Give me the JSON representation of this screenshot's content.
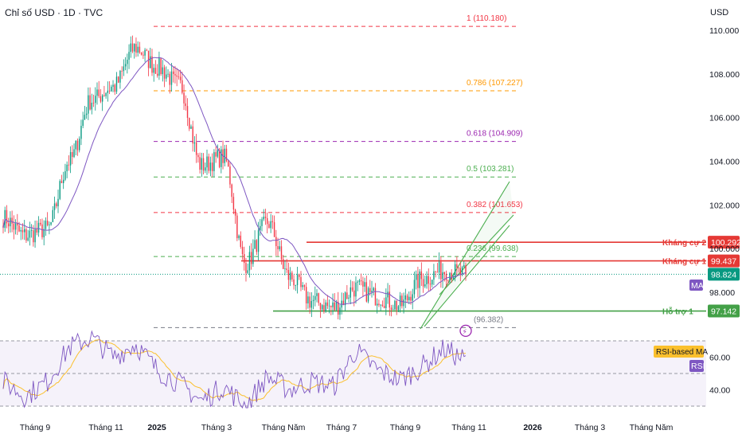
{
  "header": {
    "title": "Chỉ số USD · 1D · TVC",
    "currency": "USD"
  },
  "colors": {
    "up": "#089981",
    "down": "#f23645",
    "ma": "#7e57c2",
    "rsi": "#7e57c2",
    "rsi_ma": "#fbc02d",
    "resistance": "#e53935",
    "support": "#43a047",
    "channel": "#4caf50",
    "last_price": "#089981"
  },
  "chart_data": [
    {
      "type": "candlestick",
      "title": "Chỉ số USD · 1D · TVC",
      "ylim": [
        94.3,
        110.6
      ],
      "y_ticks": [
        "110.000",
        "108.000",
        "106.000",
        "104.000",
        "102.000",
        "100.000",
        "98.000"
      ],
      "x_ticks": [
        "Tháng 9",
        "Tháng 11",
        "2025",
        "Tháng 3",
        "Tháng Năm",
        "Tháng 7",
        "Tháng 9",
        "Tháng 11",
        "2026",
        "Tháng 3",
        "Tháng Năm"
      ],
      "anchors": [
        {
          "label": "Tháng 9",
          "close": 101.4
        },
        {
          "label": "",
          "close": 100.6
        },
        {
          "label": "",
          "close": 100.9
        },
        {
          "label": "Tháng 11",
          "close": 104.0
        },
        {
          "label": "",
          "close": 106.8
        },
        {
          "label": "",
          "close": 107.4
        },
        {
          "label": "2025",
          "close": 109.2
        },
        {
          "label": "",
          "close": 108.3
        },
        {
          "label": "",
          "close": 107.5
        },
        {
          "label": "Tháng 3",
          "close": 103.8
        },
        {
          "label": "",
          "close": 104.2
        },
        {
          "label": "",
          "close": 99.3
        },
        {
          "label": "Tháng Năm",
          "close": 101.2
        },
        {
          "label": "",
          "close": 98.7
        },
        {
          "label": "",
          "close": 97.6
        },
        {
          "label": "Tháng 7",
          "close": 97.3
        },
        {
          "label": "",
          "close": 98.2
        },
        {
          "label": "",
          "close": 97.8
        },
        {
          "label": "Tháng 9",
          "close": 97.4
        },
        {
          "label": "",
          "close": 98.6
        },
        {
          "label": "",
          "close": 99.0
        },
        {
          "label": "Tháng 11",
          "close": 98.82
        }
      ],
      "moving_average": {
        "name": "MA",
        "badge": "MA"
      },
      "fibonacci": [
        {
          "ratio": "1",
          "price": 110.18,
          "label": "1 (110.180)",
          "color": "#f23645"
        },
        {
          "ratio": "0.786",
          "price": 107.227,
          "label": "0.786 (107.227)",
          "color": "#ff9800"
        },
        {
          "ratio": "0.618",
          "price": 104.909,
          "label": "0.618 (104.909)",
          "color": "#9c27b0"
        },
        {
          "ratio": "0.5",
          "price": 103.281,
          "label": "0.5 (103.281)",
          "color": "#4caf50"
        },
        {
          "ratio": "0.382",
          "price": 101.653,
          "label": "0.382 (101.653)",
          "color": "#f23645"
        },
        {
          "ratio": "0.236",
          "price": 99.638,
          "label": "0.236 (99.638)",
          "color": "#4caf50"
        },
        {
          "ratio": "0",
          "price": 96.382,
          "label": "(96.382)",
          "color": "#787b86"
        }
      ],
      "levels": [
        {
          "name": "Kháng cự 2",
          "price": 100.292,
          "price_label": "100.292",
          "color": "#e53935"
        },
        {
          "name": "Kháng cự 1",
          "price": 99.437,
          "price_label": "99.437",
          "color": "#e53935"
        },
        {
          "name": "Hỗ trợ 1",
          "price": 97.142,
          "price_label": "97.142",
          "color": "#43a047"
        }
      ],
      "last_price": {
        "value": 98.824,
        "label": "98.824"
      }
    },
    {
      "type": "line",
      "title": "RSI",
      "ylim": [
        28,
        78
      ],
      "y_ticks": [
        "60.00",
        "40.00"
      ],
      "bands": [
        70,
        50,
        30
      ],
      "series": [
        {
          "name": "RSI",
          "badge": "RSI"
        },
        {
          "name": "RSI-based MA",
          "badge": "RSI-based MA"
        }
      ],
      "anchors": [
        {
          "label": "Tháng 9",
          "value": 45
        },
        {
          "label": "",
          "value": 36
        },
        {
          "label": "",
          "value": 45
        },
        {
          "label": "Tháng 11",
          "value": 66
        },
        {
          "label": "",
          "value": 72
        },
        {
          "label": "",
          "value": 60
        },
        {
          "label": "2025",
          "value": 68
        },
        {
          "label": "",
          "value": 52
        },
        {
          "label": "",
          "value": 44
        },
        {
          "label": "Tháng 3",
          "value": 33
        },
        {
          "label": "",
          "value": 42
        },
        {
          "label": "",
          "value": 30
        },
        {
          "label": "Tháng Năm",
          "value": 48
        },
        {
          "label": "",
          "value": 40
        },
        {
          "label": "",
          "value": 45
        },
        {
          "label": "Tháng 7",
          "value": 42
        },
        {
          "label": "",
          "value": 64
        },
        {
          "label": "",
          "value": 52
        },
        {
          "label": "Tháng 9",
          "value": 46
        },
        {
          "label": "",
          "value": 54
        },
        {
          "label": "",
          "value": 65
        },
        {
          "label": "Tháng 11",
          "value": 58
        }
      ]
    }
  ]
}
